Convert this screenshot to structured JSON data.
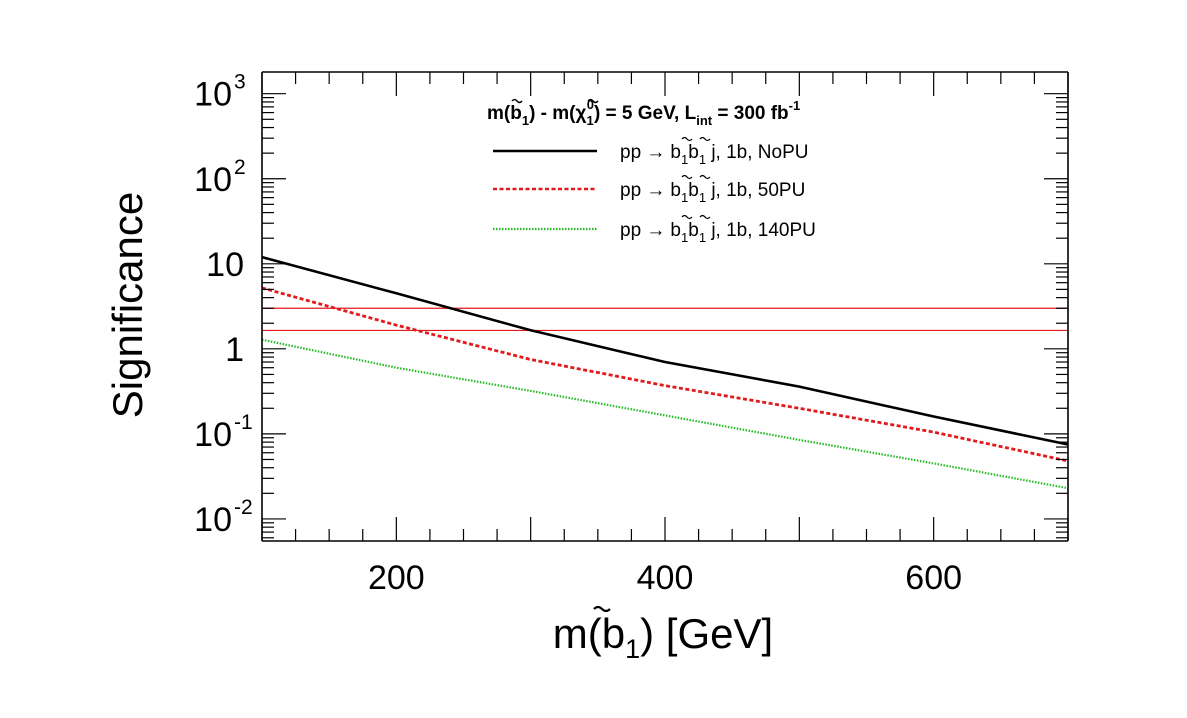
{
  "chart_data": {
    "type": "line",
    "title": "m(b̃₁) - m(χ̃₁⁰) = 5 GeV, L_int = 300 fb⁻¹",
    "title_parts": {
      "p1": "m(",
      "p2": "b",
      "p3": "1",
      "p4": ") - m(",
      "p5": "χ",
      "p6": "1",
      "p7": "0",
      "p8": ") = 5 GeV, L",
      "p9": "int",
      "p10": " = 300 fb",
      "p11": "-1"
    },
    "xlabel": "m(b̃₁) [GeV]",
    "xlabel_parts": {
      "pre": "m(",
      "b": "b",
      "sub": "1",
      "post": ") [GeV]"
    },
    "ylabel": "Significance",
    "xscale": "linear",
    "yscale": "log",
    "xlim": [
      100,
      700
    ],
    "ylim": [
      0.0055,
      1800
    ],
    "x_ticks": [
      {
        "value": 200,
        "label": "200"
      },
      {
        "value": 400,
        "label": "400"
      },
      {
        "value": 600,
        "label": "600"
      }
    ],
    "y_ticks": [
      {
        "value": 0.01,
        "base": "10",
        "exp": "-2"
      },
      {
        "value": 0.1,
        "base": "10",
        "exp": "-1"
      },
      {
        "value": 1,
        "base": "1",
        "exp": ""
      },
      {
        "value": 10,
        "base": "10",
        "exp": ""
      },
      {
        "value": 100,
        "base": "10",
        "exp": "2"
      },
      {
        "value": 1000,
        "base": "10",
        "exp": "3"
      }
    ],
    "legend_position": "top-right",
    "series": [
      {
        "name": "pp → b̃₁b̃₁ j, 1b, NoPU",
        "label_pre": "pp ",
        "label_arrow": "→",
        "label_post": " j, 1b, NoPU",
        "color": "#000000",
        "style": "solid",
        "x": [
          100,
          200,
          300,
          400,
          500,
          600,
          700
        ],
        "values": [
          12,
          4.5,
          1.65,
          0.7,
          0.36,
          0.16,
          0.075
        ]
      },
      {
        "name": "pp → b̃₁b̃₁ j, 1b, 50PU",
        "label_pre": "pp ",
        "label_arrow": "→",
        "label_post": " j, 1b, 50PU",
        "color": "#e31a1c",
        "style": "dashed",
        "x": [
          100,
          200,
          300,
          400,
          500,
          600,
          700
        ],
        "values": [
          5.2,
          1.9,
          0.75,
          0.37,
          0.2,
          0.105,
          0.048
        ]
      },
      {
        "name": "pp → b̃₁b̃₁ j, 1b, 140PU",
        "label_pre": "pp ",
        "label_arrow": "→",
        "label_post": " j, 1b, 140PU",
        "color": "#22bb22",
        "style": "dotted",
        "x": [
          100,
          200,
          300,
          400,
          500,
          600,
          700
        ],
        "values": [
          1.28,
          0.6,
          0.32,
          0.165,
          0.085,
          0.045,
          0.023
        ]
      }
    ],
    "reference_lines": [
      {
        "value": 3,
        "color": "#e31a1c"
      },
      {
        "value": 1.645,
        "color": "#e31a1c"
      }
    ]
  }
}
